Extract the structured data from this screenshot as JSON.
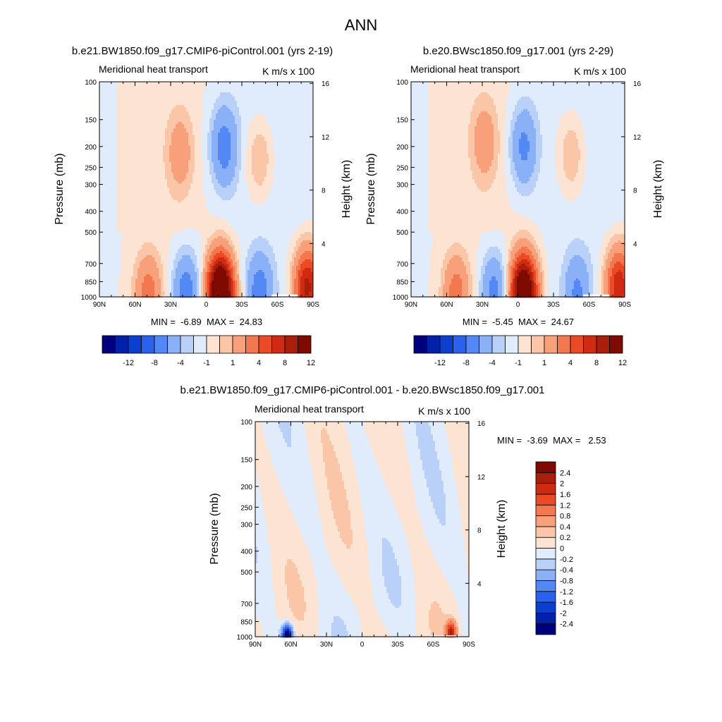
{
  "figure": {
    "title": "ANN"
  },
  "palette": {
    "full": [
      "#00007f",
      "#0021a8",
      "#0a3fd0",
      "#2a62ee",
      "#5489f5",
      "#8ab0f7",
      "#b9d0f9",
      "#e0ecfb",
      "#fde3d2",
      "#fbc5a8",
      "#f7a07a",
      "#f37850",
      "#ea4a26",
      "#cf2a12",
      "#a81e0a",
      "#7f0a02"
    ]
  },
  "chart_data": [
    {
      "type": "heatmap",
      "title": "b.e21.BW1850.f09_g17.CMIP6-piControl.001 (yrs 2-19)",
      "left_label": "Meridional heat transport",
      "right_label": "K m/s x 100",
      "xlabel": "",
      "ylabel": "Pressure (mb)",
      "y2label": "Height (km)",
      "xticks": [
        "90N",
        "60N",
        "30N",
        "0",
        "30S",
        "60S",
        "90S"
      ],
      "yticks": [
        100,
        150,
        200,
        250,
        300,
        400,
        500,
        700,
        850,
        1000
      ],
      "y2ticks": [
        16,
        12,
        8,
        4
      ],
      "ylim": [
        1000,
        100
      ],
      "yscale": "log",
      "min_max": "MIN =  -6.89  MAX =  24.83",
      "colorbar": {
        "orientation": "horizontal",
        "labels": [
          "-12",
          "-8",
          "-4",
          "-1",
          "1",
          "4",
          "8",
          "12"
        ]
      },
      "features": [
        {
          "lat": -15,
          "p": 200,
          "value": -5
        },
        {
          "lat": 22,
          "p": 215,
          "value": 3
        },
        {
          "lat": -45,
          "p": 230,
          "value": 2.5
        },
        {
          "lat": -12,
          "p": 960,
          "value": 20
        },
        {
          "lat": 17,
          "p": 950,
          "value": -5.5
        },
        {
          "lat": 49,
          "p": 960,
          "value": 5
        },
        {
          "lat": -45,
          "p": 950,
          "value": -5
        },
        {
          "lat": -85,
          "p": 900,
          "value": 11
        }
      ]
    },
    {
      "type": "heatmap",
      "title": "b.e20.BWsc1850.f09_g17.001 (yrs 2-29)",
      "left_label": "Meridional heat transport",
      "right_label": "K m/s x 100",
      "xlabel": "",
      "ylabel": "Pressure (mb)",
      "y2label": "Height (km)",
      "xticks": [
        "90N",
        "60N",
        "30N",
        "0",
        "30S",
        "60S",
        "90S"
      ],
      "yticks": [
        100,
        150,
        200,
        250,
        300,
        400,
        500,
        700,
        850,
        1000
      ],
      "y2ticks": [
        16,
        12,
        8,
        4
      ],
      "ylim": [
        1000,
        100
      ],
      "yscale": "log",
      "min_max": "MIN =  -5.45  MAX =  24.67",
      "colorbar": {
        "orientation": "horizontal",
        "labels": [
          "-12",
          "-8",
          "-4",
          "-1",
          "1",
          "4",
          "8",
          "12"
        ]
      },
      "features": [
        {
          "lat": -5,
          "p": 200,
          "value": -4.5
        },
        {
          "lat": 28,
          "p": 190,
          "value": 3
        },
        {
          "lat": -45,
          "p": 220,
          "value": 2.5
        },
        {
          "lat": -5,
          "p": 960,
          "value": 18
        },
        {
          "lat": 20,
          "p": 950,
          "value": -5
        },
        {
          "lat": 52,
          "p": 960,
          "value": 5
        },
        {
          "lat": -50,
          "p": 950,
          "value": -4
        },
        {
          "lat": -85,
          "p": 900,
          "value": 10
        }
      ]
    },
    {
      "type": "heatmap",
      "title": "b.e21.BW1850.f09_g17.CMIP6-piControl.001 - b.e20.BWsc1850.f09_g17.001",
      "left_label": "Meridional heat transport",
      "right_label": "K m/s x 100",
      "xlabel": "",
      "ylabel": "Pressure (mb)",
      "y2label": "Height (km)",
      "xticks": [
        "90N",
        "60N",
        "30N",
        "0",
        "30S",
        "60S",
        "90S"
      ],
      "yticks": [
        100,
        150,
        200,
        250,
        300,
        400,
        500,
        700,
        850,
        1000
      ],
      "y2ticks": [
        16,
        12,
        8,
        4
      ],
      "ylim": [
        1000,
        100
      ],
      "yscale": "log",
      "min_max": "MIN =  -3.69  MAX =   2.53",
      "colorbar": {
        "orientation": "vertical",
        "labels": [
          "-2.4",
          "-2",
          "-1.6",
          "-1.2",
          "-0.8",
          "-0.4",
          "-0.2",
          "0",
          "0.2",
          "0.4",
          "0.8",
          "1.2",
          "1.6",
          "2",
          "2.4"
        ]
      },
      "features": [
        {
          "lat": 63,
          "p": 990,
          "value": -3
        },
        {
          "lat": -75,
          "p": 950,
          "value": 2
        }
      ]
    }
  ]
}
